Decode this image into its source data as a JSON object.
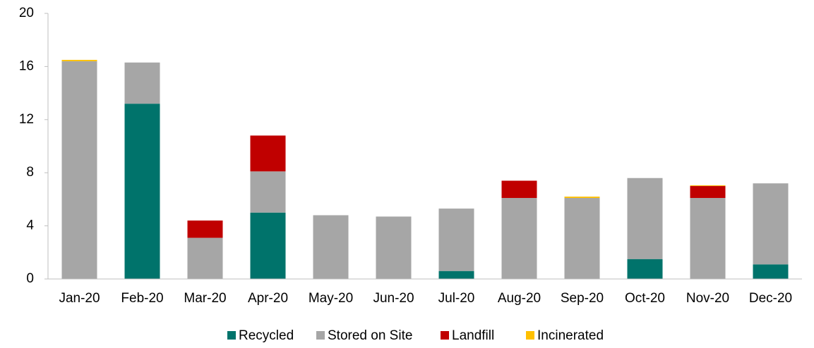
{
  "chart_data": {
    "type": "stacked_bar",
    "categories": [
      "Jan-20",
      "Feb-20",
      "Mar-20",
      "Apr-20",
      "May-20",
      "Jun-20",
      "Jul-20",
      "Aug-20",
      "Sep-20",
      "Oct-20",
      "Nov-20",
      "Dec-20"
    ],
    "series": [
      {
        "name": "Recycled",
        "color": "#00736b",
        "values": [
          0,
          13.2,
          0,
          5.0,
          0,
          0,
          0.6,
          0,
          0,
          1.5,
          0,
          1.1
        ]
      },
      {
        "name": "Stored on Site",
        "color": "#a6a6a6",
        "values": [
          16.4,
          3.1,
          3.1,
          3.1,
          4.8,
          4.7,
          4.7,
          6.1,
          6.1,
          6.1,
          6.1,
          6.1
        ]
      },
      {
        "name": "Landfill",
        "color": "#c00000",
        "values": [
          0,
          0,
          1.3,
          2.7,
          0,
          0,
          0,
          1.3,
          0,
          0,
          0.9,
          0
        ]
      },
      {
        "name": "Incinerated",
        "color": "#ffc000",
        "values": [
          0.1,
          0,
          0,
          0,
          0,
          0,
          0,
          0,
          0.1,
          0,
          0.05,
          0
        ]
      }
    ],
    "ylim": [
      0,
      20
    ],
    "yticks": [
      0,
      4,
      8,
      12,
      16,
      20
    ],
    "grid": false,
    "legend": "bottom"
  }
}
